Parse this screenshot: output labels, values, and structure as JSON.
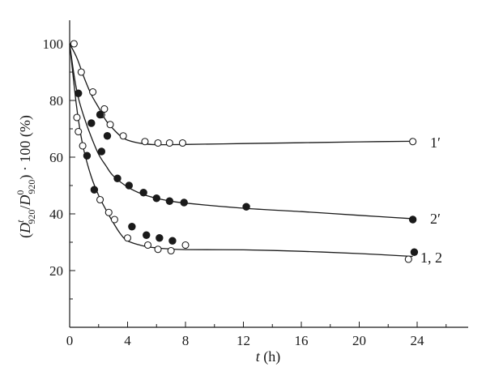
{
  "chart_data": {
    "type": "scatter",
    "xlabel_var": "t",
    "xlabel_unit": " (h)",
    "ylabel_prefix": "(",
    "ylabel_D": "D",
    "ylabel_sup_t": "t",
    "ylabel_sub_920a": "920",
    "ylabel_slash": "/",
    "ylabel_sup_0": "0",
    "ylabel_sub_920b": "920",
    "ylabel_suffix": ") · 100 (%)",
    "xlim": [
      0,
      28
    ],
    "ylim": [
      0,
      110
    ],
    "x_ticks": [
      0,
      4,
      8,
      12,
      16,
      20,
      24
    ],
    "y_ticks": [
      20,
      40,
      60,
      80,
      100
    ],
    "grid": false,
    "series": [
      {
        "name": "1′",
        "marker": "open-circle",
        "points": [
          [
            0.3,
            100
          ],
          [
            0.8,
            90
          ],
          [
            1.6,
            83
          ],
          [
            2.2,
            75
          ],
          [
            2.4,
            77
          ],
          [
            2.8,
            71.5
          ],
          [
            3.7,
            67.5
          ],
          [
            5.2,
            65.5
          ],
          [
            6.1,
            65
          ],
          [
            6.9,
            65
          ],
          [
            7.8,
            65
          ],
          [
            23.7,
            65.5
          ]
        ],
        "fit": [
          [
            0,
            100
          ],
          [
            0.5,
            95
          ],
          [
            1,
            88
          ],
          [
            1.5,
            82
          ],
          [
            2,
            77.5
          ],
          [
            2.5,
            73
          ],
          [
            3,
            70
          ],
          [
            3.5,
            67.5
          ],
          [
            4,
            66
          ],
          [
            5,
            64.8
          ],
          [
            6,
            64.4
          ],
          [
            8,
            64.5
          ],
          [
            12,
            64.8
          ],
          [
            16,
            65.1
          ],
          [
            20,
            65.4
          ],
          [
            23.7,
            65.6
          ]
        ]
      },
      {
        "name": "2′",
        "marker": "filled-circle",
        "points": [
          [
            0.6,
            82.5
          ],
          [
            1.5,
            72
          ],
          [
            2.1,
            75
          ],
          [
            2.2,
            62
          ],
          [
            2.6,
            67.5
          ],
          [
            3.3,
            52.5
          ],
          [
            4.1,
            50
          ],
          [
            5.1,
            47.5
          ],
          [
            6.0,
            45.5
          ],
          [
            6.9,
            44.5
          ],
          [
            7.9,
            44
          ],
          [
            12.2,
            42.5
          ],
          [
            23.7,
            38
          ]
        ],
        "fit": [
          [
            0,
            100
          ],
          [
            0.3,
            89
          ],
          [
            0.6,
            81
          ],
          [
            1,
            74
          ],
          [
            1.5,
            67
          ],
          [
            2,
            61
          ],
          [
            2.5,
            57
          ],
          [
            3,
            53.5
          ],
          [
            4,
            49.5
          ],
          [
            5,
            47
          ],
          [
            6,
            45.5
          ],
          [
            7,
            44.5
          ],
          [
            8,
            43.8
          ],
          [
            12,
            42
          ],
          [
            16,
            40.8
          ],
          [
            20,
            39.5
          ],
          [
            23.7,
            38.3
          ]
        ]
      },
      {
        "name": "1, 2",
        "marker": "mixed",
        "points_open": [
          [
            0.5,
            74
          ],
          [
            0.6,
            69
          ],
          [
            0.9,
            64
          ],
          [
            2.1,
            45
          ],
          [
            2.7,
            40.5
          ],
          [
            3.1,
            38
          ],
          [
            4.0,
            31.5
          ],
          [
            5.4,
            29
          ],
          [
            6.1,
            27.5
          ],
          [
            7.0,
            27
          ],
          [
            8.0,
            29
          ],
          [
            23.4,
            24
          ]
        ],
        "points_filled": [
          [
            1.2,
            60.5
          ],
          [
            1.7,
            48.5
          ],
          [
            4.3,
            35.5
          ],
          [
            5.3,
            32.5
          ],
          [
            6.2,
            31.5
          ],
          [
            7.1,
            30.5
          ],
          [
            23.8,
            26.5
          ]
        ],
        "fit": [
          [
            0,
            100
          ],
          [
            0.4,
            81
          ],
          [
            0.7,
            70
          ],
          [
            1,
            62
          ],
          [
            1.5,
            53
          ],
          [
            2,
            46.5
          ],
          [
            2.5,
            41.5
          ],
          [
            3,
            37
          ],
          [
            3.5,
            33
          ],
          [
            4,
            30.5
          ],
          [
            5,
            28.8
          ],
          [
            6,
            28
          ],
          [
            7,
            27.6
          ],
          [
            8,
            27.4
          ],
          [
            12,
            27.3
          ],
          [
            16,
            26.8
          ],
          [
            20,
            26
          ],
          [
            23.7,
            25
          ]
        ]
      }
    ],
    "curve_labels": [
      "1′",
      "2′",
      "1, 2"
    ]
  }
}
